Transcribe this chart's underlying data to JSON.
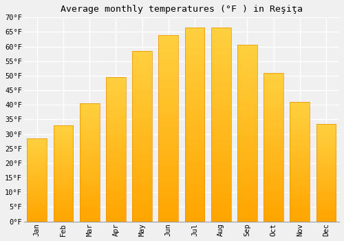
{
  "title": "Average monthly temperatures (°F ) in Reşiţa",
  "months": [
    "Jan",
    "Feb",
    "Mar",
    "Apr",
    "May",
    "Jun",
    "Jul",
    "Aug",
    "Sep",
    "Oct",
    "Nov",
    "Dec"
  ],
  "values": [
    28.5,
    33.0,
    40.5,
    49.5,
    58.5,
    64.0,
    66.5,
    66.5,
    60.5,
    51.0,
    41.0,
    33.5
  ],
  "bar_color_top": "#FFD040",
  "bar_color_bottom": "#FFA500",
  "ylim": [
    0,
    70
  ],
  "yticks": [
    0,
    5,
    10,
    15,
    20,
    25,
    30,
    35,
    40,
    45,
    50,
    55,
    60,
    65,
    70
  ],
  "ytick_labels": [
    "0°F",
    "5°F",
    "10°F",
    "15°F",
    "20°F",
    "25°F",
    "30°F",
    "35°F",
    "40°F",
    "45°F",
    "50°F",
    "55°F",
    "60°F",
    "65°F",
    "70°F"
  ],
  "bg_color": "#f0f0f0",
  "grid_color": "#ffffff",
  "bar_edge_color": "#E89000",
  "title_fontsize": 9.5,
  "tick_fontsize": 7.5,
  "font_family": "monospace"
}
